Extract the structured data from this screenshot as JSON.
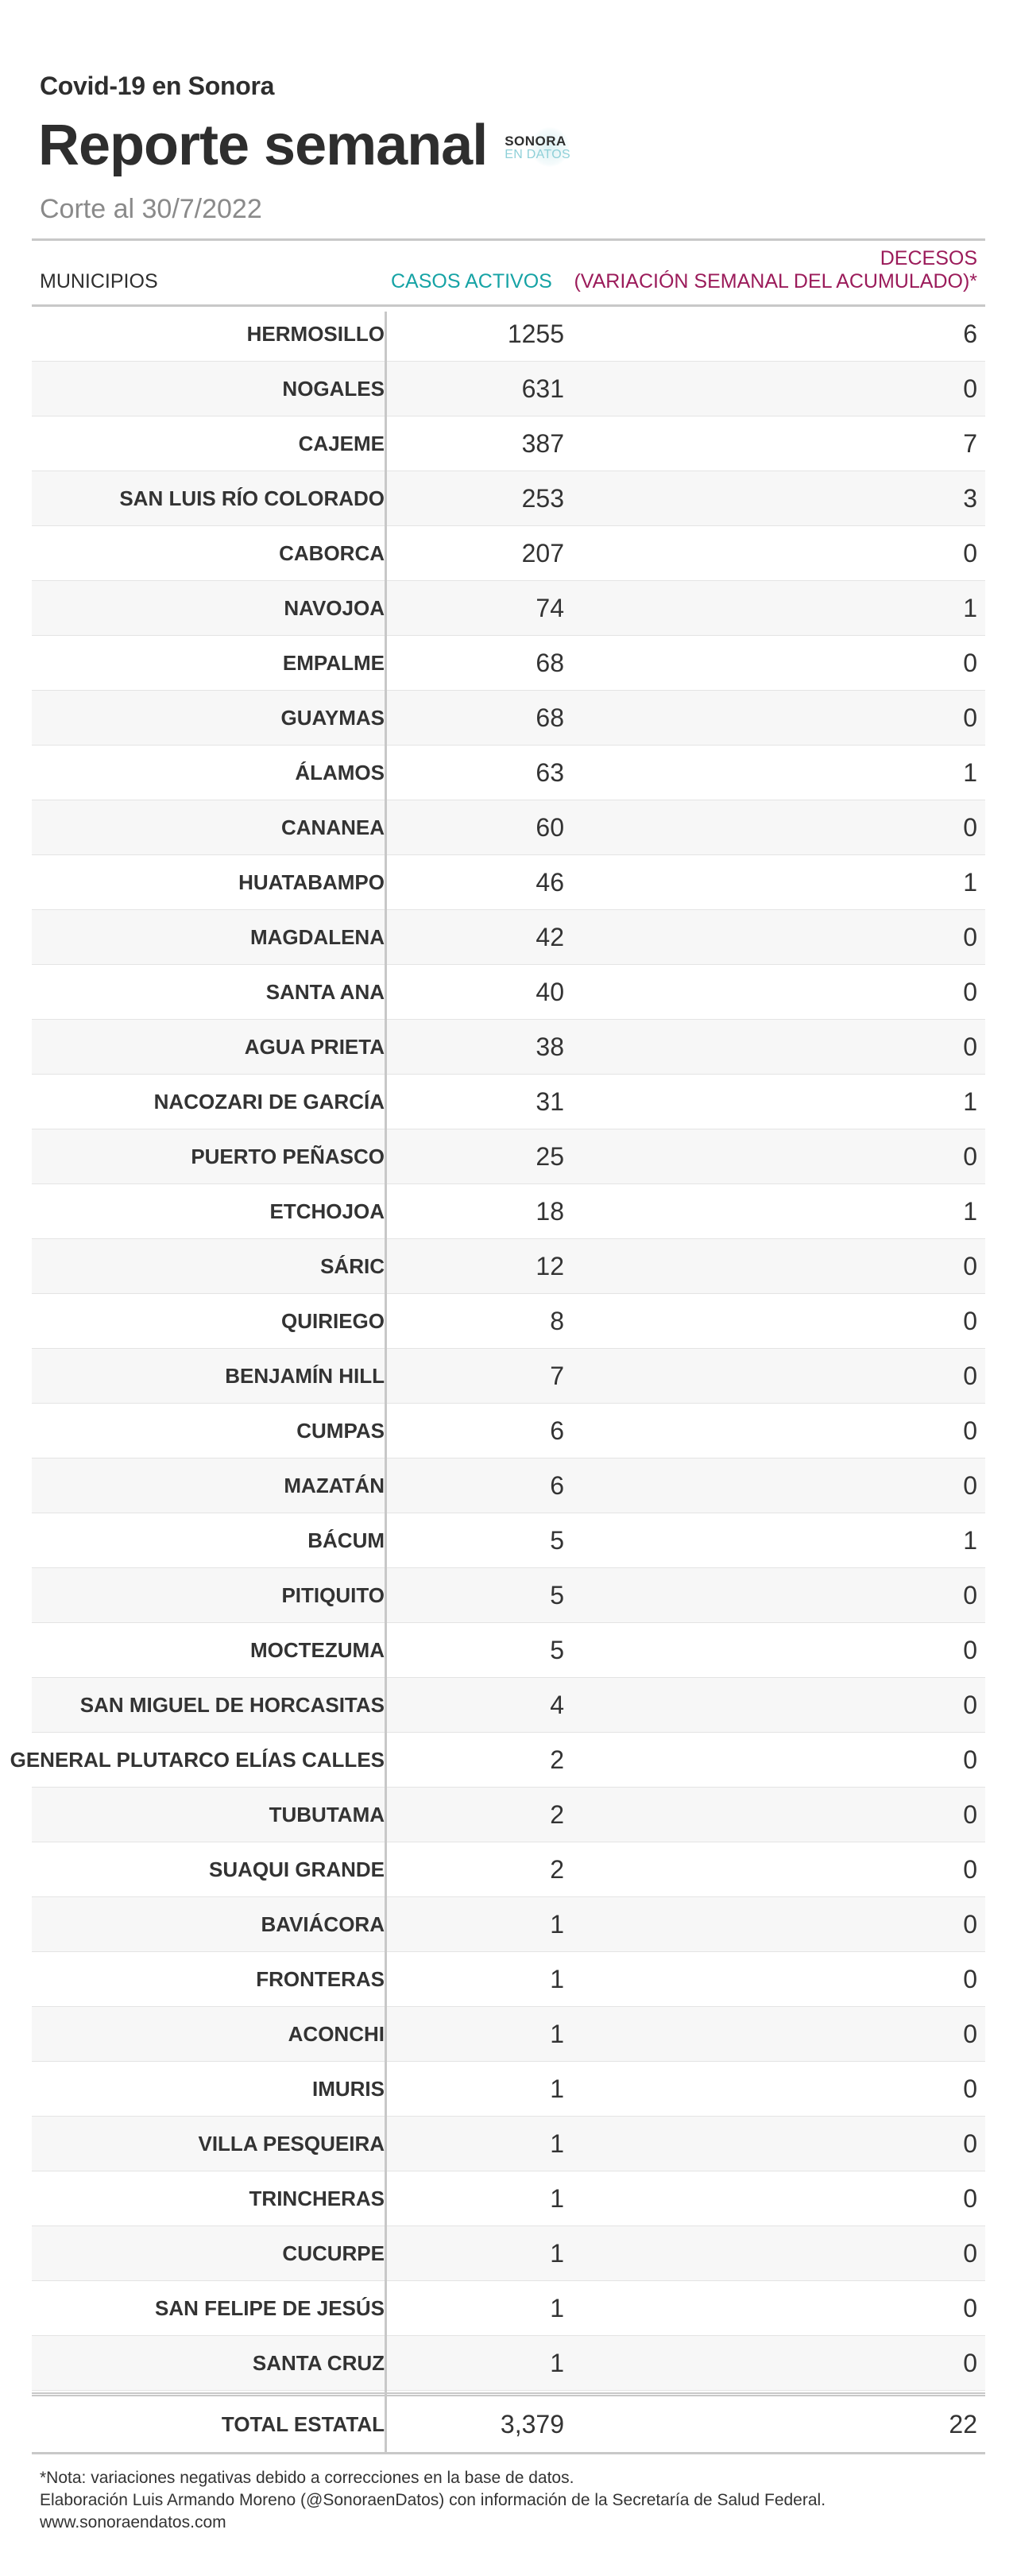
{
  "header": {
    "kicker": "Covid-19 en Sonora",
    "title": "Reporte semanal",
    "cutoff": "Corte al 30/7/2022",
    "logo": {
      "line1": "SONORA",
      "line2": "EN DATOS"
    }
  },
  "table": {
    "col_municipios": "MUNICIPIOS",
    "col_casos": "CASOS ACTIVOS",
    "col_decesos_line1": "DECESOS",
    "col_decesos_line2": "(VARIACIÓN SEMANAL DEL ACUMULADO)*",
    "colors": {
      "casos": "#16a3a5",
      "decesos": "#9b1b5a"
    },
    "rows": [
      {
        "municipio": "HERMOSILLO",
        "casos": "1255",
        "decesos": "6"
      },
      {
        "municipio": "NOGALES",
        "casos": "631",
        "decesos": "0"
      },
      {
        "municipio": "CAJEME",
        "casos": "387",
        "decesos": "7"
      },
      {
        "municipio": "SAN LUIS RÍO COLORADO",
        "casos": "253",
        "decesos": "3"
      },
      {
        "municipio": "CABORCA",
        "casos": "207",
        "decesos": "0"
      },
      {
        "municipio": "NAVOJOA",
        "casos": "74",
        "decesos": "1"
      },
      {
        "municipio": "EMPALME",
        "casos": "68",
        "decesos": "0"
      },
      {
        "municipio": "GUAYMAS",
        "casos": "68",
        "decesos": "0"
      },
      {
        "municipio": "ÁLAMOS",
        "casos": "63",
        "decesos": "1"
      },
      {
        "municipio": "CANANEA",
        "casos": "60",
        "decesos": "0"
      },
      {
        "municipio": "HUATABAMPO",
        "casos": "46",
        "decesos": "1"
      },
      {
        "municipio": "MAGDALENA",
        "casos": "42",
        "decesos": "0"
      },
      {
        "municipio": "SANTA ANA",
        "casos": "40",
        "decesos": "0"
      },
      {
        "municipio": "AGUA PRIETA",
        "casos": "38",
        "decesos": "0"
      },
      {
        "municipio": "NACOZARI DE GARCÍA",
        "casos": "31",
        "decesos": "1"
      },
      {
        "municipio": "PUERTO PEÑASCO",
        "casos": "25",
        "decesos": "0"
      },
      {
        "municipio": "ETCHOJOA",
        "casos": "18",
        "decesos": "1"
      },
      {
        "municipio": "SÁRIC",
        "casos": "12",
        "decesos": "0"
      },
      {
        "municipio": "QUIRIEGO",
        "casos": "8",
        "decesos": "0"
      },
      {
        "municipio": "BENJAMÍN HILL",
        "casos": "7",
        "decesos": "0"
      },
      {
        "municipio": "CUMPAS",
        "casos": "6",
        "decesos": "0"
      },
      {
        "municipio": "MAZATÁN",
        "casos": "6",
        "decesos": "0"
      },
      {
        "municipio": "BÁCUM",
        "casos": "5",
        "decesos": "1"
      },
      {
        "municipio": "PITIQUITO",
        "casos": "5",
        "decesos": "0"
      },
      {
        "municipio": "MOCTEZUMA",
        "casos": "5",
        "decesos": "0"
      },
      {
        "municipio": "SAN MIGUEL DE HORCASITAS",
        "casos": "4",
        "decesos": "0"
      },
      {
        "municipio": "GENERAL PLUTARCO ELÍAS CALLES",
        "casos": "2",
        "decesos": "0"
      },
      {
        "municipio": "TUBUTAMA",
        "casos": "2",
        "decesos": "0"
      },
      {
        "municipio": "SUAQUI GRANDE",
        "casos": "2",
        "decesos": "0"
      },
      {
        "municipio": "BAVIÁCORA",
        "casos": "1",
        "decesos": "0"
      },
      {
        "municipio": "FRONTERAS",
        "casos": "1",
        "decesos": "0"
      },
      {
        "municipio": "ACONCHI",
        "casos": "1",
        "decesos": "0"
      },
      {
        "municipio": "IMURIS",
        "casos": "1",
        "decesos": "0"
      },
      {
        "municipio": "VILLA PESQUEIRA",
        "casos": "1",
        "decesos": "0"
      },
      {
        "municipio": "TRINCHERAS",
        "casos": "1",
        "decesos": "0"
      },
      {
        "municipio": "CUCURPE",
        "casos": "1",
        "decesos": "0"
      },
      {
        "municipio": "SAN FELIPE DE JESÚS",
        "casos": "1",
        "decesos": "0"
      },
      {
        "municipio": "SANTA CRUZ",
        "casos": "1",
        "decesos": "0"
      }
    ],
    "total": {
      "label": "TOTAL ESTATAL",
      "casos": "3,379",
      "decesos": "22"
    }
  },
  "footer": {
    "note": "*Nota: variaciones negativas debido a correcciones en la base de datos.",
    "credit": "Elaboración Luis Armando Moreno (@SonoraenDatos) con información de la Secretaría de Salud Federal.",
    "url": "www.sonoraendatos.com"
  }
}
